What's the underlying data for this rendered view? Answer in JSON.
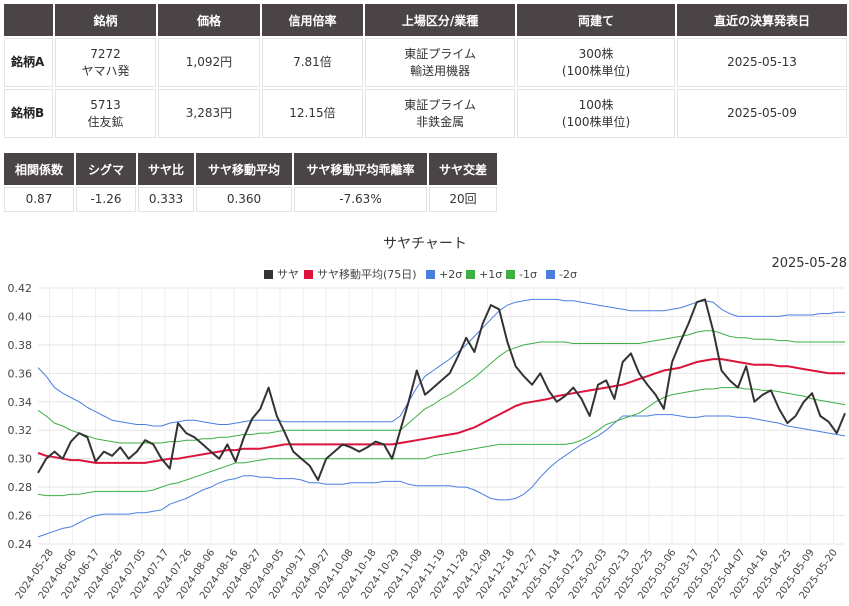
{
  "info_table": {
    "headers": [
      "",
      "銘柄",
      "価格",
      "信用倍率",
      "上場区分/業種",
      "両建て",
      "直近の決算発表日"
    ],
    "rows": [
      {
        "label": "銘柄A",
        "code": "7272",
        "name": "ヤマハ発",
        "price": "1,092円",
        "margin_ratio": "7.81倍",
        "market": "東証プライム",
        "sector": "輸送用機器",
        "hedge_shares": "300株",
        "hedge_unit": "(100株単位)",
        "earnings_date": "2025-05-13"
      },
      {
        "label": "銘柄B",
        "code": "5713",
        "name": "住友鉱",
        "price": "3,283円",
        "margin_ratio": "12.15倍",
        "market": "東証プライム",
        "sector": "非鉄金属",
        "hedge_shares": "100株",
        "hedge_unit": "(100株単位)",
        "earnings_date": "2025-05-09"
      }
    ]
  },
  "stats_table": {
    "headers": [
      "相関係数",
      "シグマ",
      "サヤ比",
      "サヤ移動平均",
      "サヤ移動平均乖離率",
      "サヤ交差"
    ],
    "values": [
      "0.87",
      "-1.26",
      "0.333",
      "0.360",
      "-7.63%",
      "20回"
    ]
  },
  "chart_data": {
    "type": "line",
    "title": "サヤチャート",
    "date_label": "2025-05-28",
    "ylim": [
      0.24,
      0.42
    ],
    "yticks": [
      "0.24",
      "0.26",
      "0.28",
      "0.30",
      "0.32",
      "0.34",
      "0.36",
      "0.38",
      "0.40",
      "0.42"
    ],
    "x_tick_labels": [
      "2024-05-28",
      "2024-06-06",
      "2024-06-17",
      "2024-06-26",
      "2024-07-05",
      "2024-07-17",
      "2024-07-26",
      "2024-08-06",
      "2024-08-16",
      "2024-08-27",
      "2024-09-05",
      "2024-09-17",
      "2024-09-27",
      "2024-10-08",
      "2024-10-18",
      "2024-10-29",
      "2024-11-08",
      "2024-11-19",
      "2024-11-28",
      "2024-12-09",
      "2024-12-18",
      "2024-12-27",
      "2025-01-14",
      "2025-01-23",
      "2025-02-03",
      "2025-02-13",
      "2025-02-25",
      "2025-03-06",
      "2025-03-17",
      "2025-03-27",
      "2025-04-07",
      "2025-04-16",
      "2025-04-25",
      "2025-05-09",
      "2025-05-20"
    ],
    "grid": true,
    "legend_position": "top",
    "colors": {
      "saya": "#333333",
      "ma": "#dc143c",
      "sigma2": "#4a7fe0",
      "sigma1": "#3cb043"
    },
    "series": [
      {
        "name": "サヤ",
        "color": "#333333",
        "values": [
          0.29,
          0.3,
          0.305,
          0.3,
          0.312,
          0.318,
          0.315,
          0.298,
          0.305,
          0.302,
          0.308,
          0.3,
          0.305,
          0.313,
          0.31,
          0.3,
          0.293,
          0.325,
          0.318,
          0.315,
          0.31,
          0.305,
          0.3,
          0.31,
          0.298,
          0.315,
          0.328,
          0.335,
          0.35,
          0.33,
          0.318,
          0.305,
          0.3,
          0.295,
          0.285,
          0.3,
          0.305,
          0.31,
          0.308,
          0.305,
          0.308,
          0.312,
          0.31,
          0.3,
          0.32,
          0.34,
          0.362,
          0.345,
          0.35,
          0.355,
          0.36,
          0.372,
          0.385,
          0.375,
          0.395,
          0.408,
          0.405,
          0.382,
          0.365,
          0.358,
          0.352,
          0.36,
          0.348,
          0.34,
          0.344,
          0.35,
          0.342,
          0.33,
          0.352,
          0.355,
          0.342,
          0.368,
          0.374,
          0.36,
          0.352,
          0.345,
          0.335,
          0.368,
          0.382,
          0.395,
          0.41,
          0.412,
          0.39,
          0.362,
          0.355,
          0.35,
          0.365,
          0.34,
          0.345,
          0.348,
          0.335,
          0.325,
          0.33,
          0.34,
          0.346,
          0.33,
          0.326,
          0.318,
          0.332
        ]
      },
      {
        "name": "サヤ移動平均(75日)",
        "color": "#dc143c",
        "values": [
          0.304,
          0.302,
          0.301,
          0.3,
          0.299,
          0.299,
          0.298,
          0.297,
          0.297,
          0.297,
          0.297,
          0.297,
          0.297,
          0.297,
          0.298,
          0.299,
          0.3,
          0.3,
          0.301,
          0.302,
          0.303,
          0.304,
          0.305,
          0.306,
          0.306,
          0.307,
          0.307,
          0.307,
          0.308,
          0.309,
          0.31,
          0.31,
          0.31,
          0.31,
          0.31,
          0.31,
          0.31,
          0.31,
          0.31,
          0.31,
          0.31,
          0.31,
          0.31,
          0.31,
          0.311,
          0.312,
          0.313,
          0.314,
          0.315,
          0.316,
          0.317,
          0.318,
          0.32,
          0.322,
          0.325,
          0.328,
          0.331,
          0.334,
          0.337,
          0.339,
          0.34,
          0.341,
          0.342,
          0.344,
          0.345,
          0.346,
          0.347,
          0.348,
          0.349,
          0.35,
          0.351,
          0.352,
          0.354,
          0.356,
          0.358,
          0.36,
          0.362,
          0.363,
          0.364,
          0.366,
          0.368,
          0.369,
          0.37,
          0.37,
          0.369,
          0.368,
          0.367,
          0.366,
          0.366,
          0.366,
          0.365,
          0.365,
          0.364,
          0.363,
          0.362,
          0.361,
          0.36,
          0.36,
          0.36
        ]
      },
      {
        "name": "+2σ",
        "color": "#4a7fe0",
        "values": [
          0.364,
          0.358,
          0.35,
          0.346,
          0.343,
          0.34,
          0.336,
          0.333,
          0.33,
          0.327,
          0.326,
          0.325,
          0.324,
          0.324,
          0.323,
          0.323,
          0.325,
          0.326,
          0.327,
          0.327,
          0.326,
          0.325,
          0.324,
          0.324,
          0.325,
          0.326,
          0.327,
          0.327,
          0.327,
          0.327,
          0.326,
          0.326,
          0.326,
          0.326,
          0.326,
          0.326,
          0.326,
          0.326,
          0.326,
          0.326,
          0.326,
          0.326,
          0.326,
          0.326,
          0.33,
          0.34,
          0.35,
          0.358,
          0.362,
          0.366,
          0.37,
          0.375,
          0.38,
          0.386,
          0.392,
          0.398,
          0.404,
          0.408,
          0.41,
          0.411,
          0.412,
          0.412,
          0.412,
          0.412,
          0.411,
          0.411,
          0.41,
          0.409,
          0.408,
          0.407,
          0.406,
          0.405,
          0.404,
          0.404,
          0.404,
          0.404,
          0.404,
          0.405,
          0.406,
          0.408,
          0.41,
          0.411,
          0.41,
          0.405,
          0.402,
          0.4,
          0.4,
          0.4,
          0.4,
          0.4,
          0.4,
          0.401,
          0.401,
          0.401,
          0.401,
          0.402,
          0.402,
          0.403,
          0.403
        ]
      },
      {
        "name": "+1σ",
        "color": "#3cb043",
        "values": [
          0.334,
          0.33,
          0.325,
          0.323,
          0.32,
          0.318,
          0.316,
          0.314,
          0.313,
          0.312,
          0.311,
          0.311,
          0.311,
          0.311,
          0.311,
          0.311,
          0.312,
          0.312,
          0.313,
          0.313,
          0.314,
          0.314,
          0.315,
          0.315,
          0.316,
          0.317,
          0.317,
          0.318,
          0.318,
          0.319,
          0.32,
          0.32,
          0.32,
          0.32,
          0.32,
          0.32,
          0.32,
          0.32,
          0.32,
          0.32,
          0.32,
          0.32,
          0.32,
          0.32,
          0.32,
          0.325,
          0.33,
          0.335,
          0.338,
          0.342,
          0.345,
          0.349,
          0.353,
          0.357,
          0.362,
          0.367,
          0.372,
          0.376,
          0.378,
          0.38,
          0.381,
          0.382,
          0.382,
          0.382,
          0.382,
          0.381,
          0.381,
          0.381,
          0.381,
          0.381,
          0.381,
          0.381,
          0.381,
          0.381,
          0.382,
          0.383,
          0.384,
          0.385,
          0.386,
          0.387,
          0.389,
          0.39,
          0.39,
          0.388,
          0.386,
          0.385,
          0.385,
          0.384,
          0.384,
          0.384,
          0.383,
          0.383,
          0.382,
          0.382,
          0.382,
          0.382,
          0.382,
          0.382,
          0.382
        ]
      },
      {
        "name": "-1σ",
        "color": "#3cb043",
        "values": [
          0.275,
          0.274,
          0.274,
          0.274,
          0.275,
          0.275,
          0.276,
          0.277,
          0.277,
          0.277,
          0.277,
          0.277,
          0.277,
          0.277,
          0.278,
          0.28,
          0.282,
          0.283,
          0.285,
          0.287,
          0.289,
          0.291,
          0.293,
          0.295,
          0.297,
          0.297,
          0.298,
          0.299,
          0.3,
          0.3,
          0.3,
          0.3,
          0.3,
          0.3,
          0.3,
          0.3,
          0.3,
          0.3,
          0.3,
          0.3,
          0.3,
          0.3,
          0.3,
          0.3,
          0.3,
          0.3,
          0.3,
          0.3,
          0.302,
          0.303,
          0.304,
          0.305,
          0.306,
          0.307,
          0.308,
          0.309,
          0.31,
          0.31,
          0.31,
          0.31,
          0.31,
          0.31,
          0.31,
          0.31,
          0.31,
          0.311,
          0.313,
          0.316,
          0.32,
          0.324,
          0.326,
          0.328,
          0.33,
          0.332,
          0.336,
          0.34,
          0.343,
          0.345,
          0.346,
          0.347,
          0.348,
          0.349,
          0.349,
          0.35,
          0.35,
          0.35,
          0.349,
          0.349,
          0.348,
          0.348,
          0.347,
          0.346,
          0.345,
          0.344,
          0.342,
          0.341,
          0.34,
          0.339,
          0.338
        ]
      },
      {
        "name": "-2σ",
        "color": "#4a7fe0",
        "values": [
          0.245,
          0.247,
          0.249,
          0.251,
          0.252,
          0.255,
          0.258,
          0.26,
          0.261,
          0.261,
          0.261,
          0.261,
          0.262,
          0.262,
          0.263,
          0.264,
          0.268,
          0.27,
          0.272,
          0.275,
          0.278,
          0.28,
          0.283,
          0.285,
          0.286,
          0.288,
          0.288,
          0.287,
          0.287,
          0.286,
          0.286,
          0.286,
          0.285,
          0.283,
          0.283,
          0.282,
          0.282,
          0.282,
          0.283,
          0.283,
          0.283,
          0.283,
          0.284,
          0.284,
          0.284,
          0.282,
          0.281,
          0.281,
          0.281,
          0.281,
          0.281,
          0.28,
          0.28,
          0.278,
          0.275,
          0.272,
          0.271,
          0.271,
          0.272,
          0.275,
          0.28,
          0.287,
          0.293,
          0.298,
          0.302,
          0.306,
          0.31,
          0.313,
          0.316,
          0.32,
          0.325,
          0.33,
          0.33,
          0.33,
          0.33,
          0.331,
          0.331,
          0.331,
          0.33,
          0.329,
          0.329,
          0.33,
          0.33,
          0.33,
          0.33,
          0.329,
          0.329,
          0.328,
          0.327,
          0.326,
          0.325,
          0.323,
          0.322,
          0.321,
          0.32,
          0.319,
          0.318,
          0.317,
          0.316
        ]
      }
    ]
  }
}
